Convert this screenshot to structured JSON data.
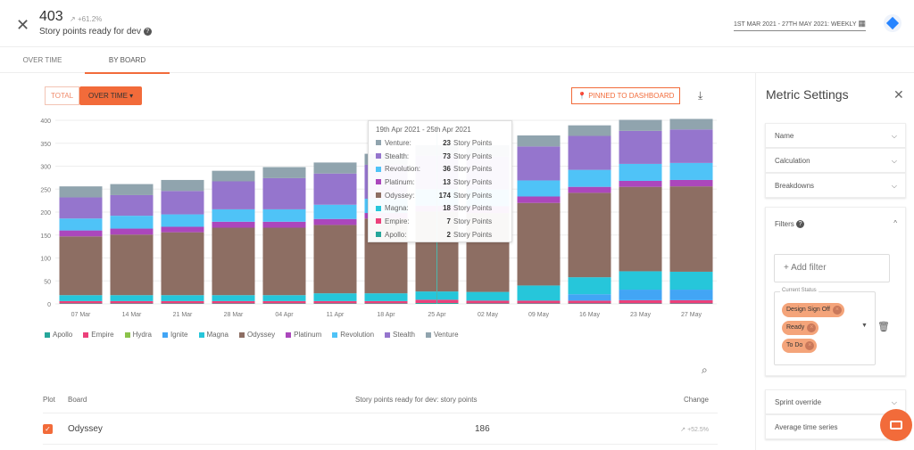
{
  "header": {
    "value": "403",
    "trend": "+61.2%",
    "subtitle": "Story points ready for dev",
    "date_range": "1ST MAR 2021 - 27TH MAY 2021: WEEKLY"
  },
  "tabs": [
    {
      "label": "OVER TIME",
      "active": false
    },
    {
      "label": "BY BOARD",
      "active": true
    }
  ],
  "toolbar": {
    "total_label": "TOTAL",
    "over_time_label": "OVER TIME ▾",
    "pinned_label": "PINNED TO DASHBOARD"
  },
  "chart_data": {
    "type": "bar",
    "stacked": true,
    "categories": [
      "07 Mar",
      "14 Mar",
      "21 Mar",
      "28 Mar",
      "04 Apr",
      "11 Apr",
      "18 Apr",
      "25 Apr",
      "02 May",
      "09 May",
      "16 May",
      "23 May",
      "27 May"
    ],
    "ylim": [
      0,
      400
    ],
    "yticks": [
      0,
      50,
      100,
      150,
      200,
      250,
      300,
      350,
      400
    ],
    "grid": true,
    "legend": "bottom",
    "series": [
      {
        "name": "Apollo",
        "color": "#26a69a",
        "values": [
          1,
          1,
          1,
          1,
          1,
          1,
          1,
          2,
          1,
          1,
          1,
          1,
          1
        ]
      },
      {
        "name": "Empire",
        "color": "#ec407a",
        "values": [
          5,
          5,
          5,
          5,
          5,
          5,
          5,
          7,
          6,
          6,
          6,
          7,
          7
        ]
      },
      {
        "name": "Hydra",
        "color": "#8bc34a",
        "values": [
          0,
          0,
          0,
          0,
          0,
          0,
          0,
          0,
          0,
          0,
          0,
          0,
          0
        ]
      },
      {
        "name": "Ignite",
        "color": "#42a5f5",
        "values": [
          0,
          0,
          0,
          0,
          0,
          0,
          0,
          0,
          0,
          0,
          14,
          23,
          23
        ]
      },
      {
        "name": "Magna",
        "color": "#26c6da",
        "values": [
          13,
          13,
          13,
          13,
          13,
          17,
          17,
          18,
          19,
          33,
          37,
          40,
          39
        ]
      },
      {
        "name": "Odyssey",
        "color": "#8d6e63",
        "values": [
          128,
          132,
          137,
          147,
          147,
          149,
          163,
          174,
          172,
          180,
          184,
          184,
          186
        ]
      },
      {
        "name": "Platinum",
        "color": "#ab47bc",
        "values": [
          13,
          13,
          12,
          13,
          13,
          13,
          12,
          13,
          15,
          14,
          13,
          13,
          14
        ]
      },
      {
        "name": "Revolution",
        "color": "#4fc3f7",
        "values": [
          26,
          28,
          27,
          27,
          27,
          31,
          31,
          36,
          36,
          35,
          37,
          37,
          37
        ]
      },
      {
        "name": "Stealth",
        "color": "#9575cd",
        "values": [
          46,
          45,
          51,
          61,
          68,
          68,
          74,
          73,
          72,
          74,
          74,
          72,
          73
        ]
      },
      {
        "name": "Venture",
        "color": "#90a4ae",
        "values": [
          24,
          24,
          24,
          23,
          24,
          24,
          24,
          23,
          25,
          24,
          23,
          24,
          23
        ]
      }
    ]
  },
  "tooltip": {
    "title": "19th Apr 2021 - 25th Apr 2021",
    "unit": "Story Points",
    "rows": [
      {
        "name": "Venture:",
        "value": "23",
        "color": "#90a4ae"
      },
      {
        "name": "Stealth:",
        "value": "73",
        "color": "#9575cd"
      },
      {
        "name": "Revolution:",
        "value": "36",
        "color": "#4fc3f7"
      },
      {
        "name": "Platinum:",
        "value": "13",
        "color": "#ab47bc"
      },
      {
        "name": "Odyssey:",
        "value": "174",
        "color": "#8d6e63"
      },
      {
        "name": "Magna:",
        "value": "18",
        "color": "#26c6da"
      },
      {
        "name": "Empire:",
        "value": "7",
        "color": "#ec407a"
      },
      {
        "name": "Apollo:",
        "value": "2",
        "color": "#26a69a"
      }
    ]
  },
  "table": {
    "headers": {
      "plot": "Plot",
      "board": "Board",
      "metric": "Story points ready for dev: story points",
      "change": "Change"
    },
    "rows": [
      {
        "checked": true,
        "board": "Odyssey",
        "value": "186",
        "change": "+52.5%"
      }
    ]
  },
  "panel": {
    "title": "Metric Settings",
    "sections": [
      "Name",
      "Calculation",
      "Breakdowns"
    ],
    "filters_label": "Filters",
    "add_filter": "+ Add filter",
    "current_status_label": "Current Status",
    "chips": [
      "Design Sign Off",
      "Ready",
      "To Do"
    ],
    "sprint_override": "Sprint override",
    "average_time_series": "Average time series"
  },
  "colors": {
    "accent": "#f26b3a",
    "jira": "#2684ff"
  }
}
